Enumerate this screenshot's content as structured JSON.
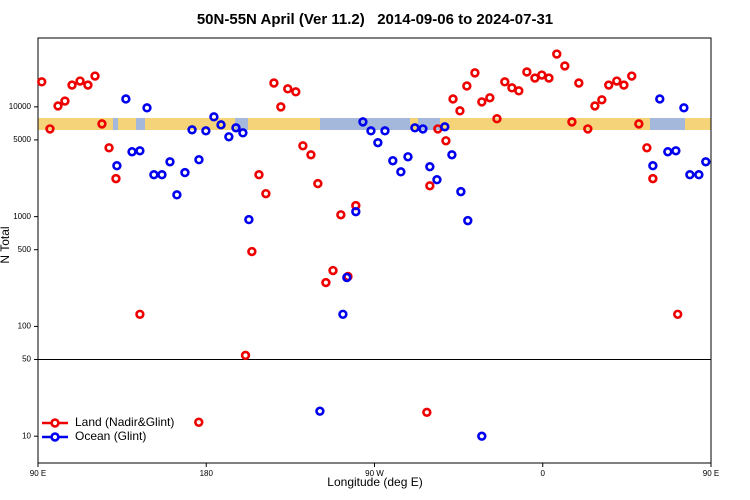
{
  "chart_data": {
    "type": "scatter",
    "title": "50N-55N April (Ver 11.2)   2014-09-06 to 2024-07-31",
    "xlabel": "Longitude (deg E)",
    "ylabel": "N Total",
    "xlim": [
      90,
      450
    ],
    "xticks": [
      {
        "value": 90,
        "label": "90 E"
      },
      180,
      {
        "value": 270,
        "label": "90 W"
      },
      {
        "value": 360,
        "label": "0"
      },
      {
        "value": 450,
        "label": "90 E"
      }
    ],
    "ylim": [
      5.7,
      42400
    ],
    "log_y": true,
    "yticks": [
      10,
      50,
      100,
      500,
      1000,
      5000,
      10000
    ],
    "hline": 50,
    "legend": "bottom-left",
    "series": [
      {
        "name": "Land (Nadir&Glint)",
        "color": "#ee0000",
        "x": [
          92,
          96.4,
          100.7,
          104.4,
          108.2,
          112.5,
          116.7,
          120.5,
          124.2,
          128,
          131.7,
          144.5,
          176,
          201,
          204.4,
          208.2,
          211.9,
          216.2,
          219.9,
          223.6,
          227.9,
          231.7,
          236,
          239.7,
          244,
          247.8,
          252,
          255.8,
          260,
          298,
          299.6,
          303.9,
          308.2,
          312,
          315.7,
          319.4,
          323.7,
          327.4,
          331.7,
          335.5,
          339.7,
          343.5,
          347.2,
          351.5,
          355.8,
          359.5,
          363.3,
          367.5,
          371.8,
          375.6,
          379.3,
          384.1,
          387.9,
          391.6,
          395.3,
          399.6,
          403.4,
          407.6,
          411.4,
          415.7,
          418.9,
          432.2
        ],
        "values": [
          16900,
          6300,
          10200,
          11300,
          15800,
          17200,
          15800,
          19100,
          7000,
          4240,
          2220,
          129,
          13.4,
          54.5,
          481,
          2410,
          1620,
          16500,
          10000,
          14600,
          13700,
          4420,
          3660,
          2000,
          251,
          323,
          1040,
          285,
          1260,
          16.5,
          1910,
          6300,
          4910,
          11800,
          9200,
          15500,
          20400,
          11100,
          12100,
          7800,
          16900,
          14900,
          14000,
          20800,
          18300,
          19500,
          18300,
          30300,
          23600,
          7300,
          16500,
          6300,
          10200,
          11600,
          15800,
          17200,
          15800,
          19100,
          7000,
          4240,
          2220,
          129
        ]
      },
      {
        "name": "Ocean (Glint)",
        "color": "#0000ee",
        "x": [
          132.2,
          137,
          140.3,
          144.5,
          148.3,
          152,
          156.3,
          160.6,
          164.3,
          168.6,
          172.4,
          176.1,
          179.8,
          184.1,
          187.9,
          192.1,
          195.9,
          199.6,
          202.8,
          240.8,
          253.1,
          255.2,
          260,
          263.8,
          268.1,
          271.8,
          275.6,
          279.8,
          284.1,
          287.9,
          291.6,
          295.9,
          299.6,
          303.4,
          307.6,
          311.4,
          316.2,
          319.9,
          327.4,
          418.9,
          422.6,
          426.9,
          431.2,
          435.5,
          438.7,
          443.5,
          447.2
        ],
        "values": [
          2910,
          11800,
          3900,
          3980,
          9800,
          2410,
          2410,
          3160,
          1580,
          2520,
          6180,
          3300,
          6050,
          8110,
          6860,
          5340,
          6440,
          5800,
          940,
          16.9,
          129,
          279,
          1110,
          7300,
          6050,
          4720,
          6050,
          3230,
          2560,
          3510,
          6440,
          6300,
          2850,
          2170,
          6580,
          3660,
          1690,
          920,
          10,
          2910,
          11800,
          3900,
          3980,
          9800,
          2410,
          2410,
          3160
        ]
      }
    ]
  }
}
